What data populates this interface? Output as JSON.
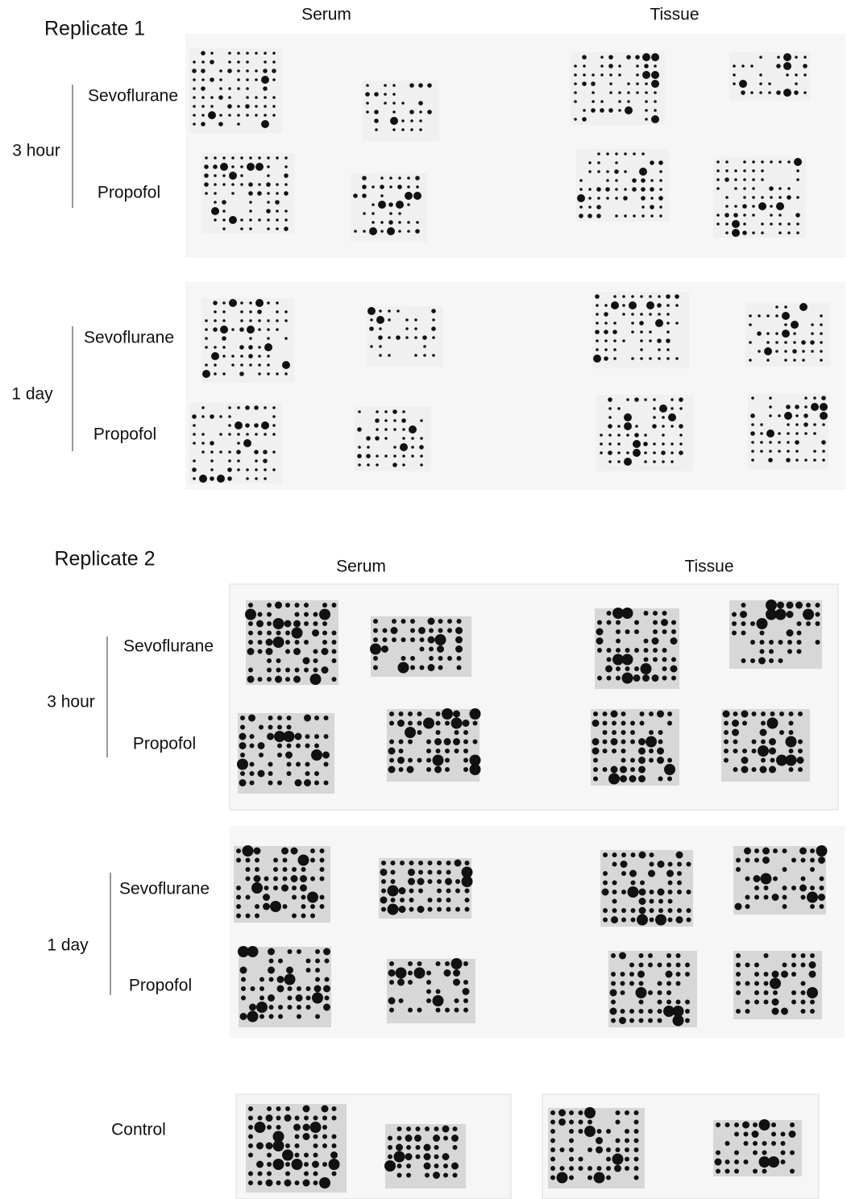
{
  "replicate1": {
    "title": "Replicate 1",
    "serum": "Serum",
    "tissue": "Tissue",
    "groups": [
      {
        "time": "3 hour",
        "rows": [
          "Sevoflurane",
          "Propofol"
        ]
      },
      {
        "time": "1 day",
        "rows": [
          "Sevoflurane",
          "Propofol"
        ]
      }
    ]
  },
  "replicate2": {
    "title": "Replicate 2",
    "serum": "Serum",
    "tissue": "Tissue",
    "groups": [
      {
        "time": "3 hour",
        "rows": [
          "Sevoflurane",
          "Propofol"
        ]
      },
      {
        "time": "1 day",
        "rows": [
          "Sevoflurane",
          "Propofol"
        ]
      }
    ]
  },
  "control": {
    "label": "Control"
  }
}
